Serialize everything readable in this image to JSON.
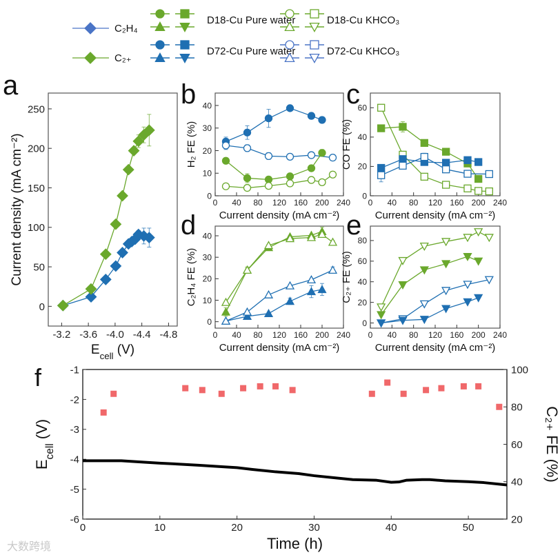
{
  "colors": {
    "green": "#6aa82c",
    "blue": "#1f6fb2",
    "legend_blue": "#4a74c6",
    "red": "#f0686a",
    "black": "#000000"
  },
  "legend": {
    "left": [
      {
        "label": "C₂H₄",
        "color": "#4a74c6",
        "marker": "diamond"
      },
      {
        "label": "C₂₊",
        "color": "#6aa82c",
        "marker": "diamond"
      }
    ],
    "groups": [
      {
        "label": "D18-Cu Pure water",
        "color": "#6aa82c",
        "filled": true
      },
      {
        "label": "D72-Cu Pure water",
        "color": "#1f6fb2",
        "filled": true
      },
      {
        "label": "D18-Cu KHCO₃",
        "color": "#6aa82c",
        "filled": false
      },
      {
        "label": "D72-Cu KHCO₃",
        "color": "#4a74c6",
        "filled": false
      }
    ]
  },
  "watermark": "大数跨境",
  "chart_data": [
    {
      "id": "a",
      "panel_label": "a",
      "type": "line",
      "xlabel": {
        "main": "E",
        "sub": "cell",
        "rest": " (V)"
      },
      "ylabel": "Current density (mA cm⁻²)",
      "xlim": [
        -3.0,
        -4.93
      ],
      "ylim": [
        -25,
        270
      ],
      "xticks": [
        -3.2,
        -3.6,
        -4.0,
        -4.4,
        -4.8
      ],
      "xtick_labels": [
        "-3.2",
        "-3.6",
        "-4.0",
        "-4.4",
        "-4.8"
      ],
      "yticks": [
        0,
        50,
        100,
        150,
        200,
        250
      ],
      "ytick_labels": [
        "0",
        "50",
        "100",
        "150",
        "200",
        "250"
      ],
      "series": [
        {
          "name": "C₂H₄",
          "color": "#1f6fb2",
          "marker": "diamond",
          "filled": true,
          "x": [
            -3.22,
            -3.64,
            -3.86,
            -4.01,
            -4.11,
            -4.2,
            -4.25,
            -4.3,
            -4.35,
            -4.43,
            -4.51
          ],
          "y": [
            1,
            12,
            34,
            51,
            68,
            79,
            82,
            85,
            91,
            89,
            87
          ],
          "err": [
            0,
            0,
            0,
            0,
            0,
            0,
            0,
            0,
            5,
            10,
            12
          ]
        },
        {
          "name": "C₂₊",
          "color": "#6aa82c",
          "marker": "diamond",
          "filled": true,
          "x": [
            -3.22,
            -3.64,
            -3.86,
            -4.01,
            -4.11,
            -4.2,
            -4.28,
            -4.35,
            -4.43,
            -4.51
          ],
          "y": [
            1,
            22,
            66,
            104,
            140,
            173,
            197,
            209,
            217,
            223
          ],
          "err": [
            0,
            0,
            0,
            0,
            0,
            0,
            0,
            8,
            10,
            20
          ]
        }
      ]
    },
    {
      "id": "b",
      "panel_label": "b",
      "type": "line",
      "xlabel": "Current density (mA cm⁻²)",
      "ylabel": "H₂ FE (%)",
      "xlim": [
        0,
        240
      ],
      "ylim": [
        0,
        45.5
      ],
      "xticks": [
        0,
        40,
        80,
        120,
        160,
        200,
        240
      ],
      "xtick_labels": [
        "0",
        "40",
        "80",
        "120",
        "160",
        "200",
        "240"
      ],
      "yticks": [
        0,
        10,
        20,
        30,
        40
      ],
      "ytick_labels": [
        "0",
        "10",
        "20",
        "30",
        "40"
      ],
      "series": [
        {
          "name": "D72-Cu Pure water",
          "color": "#1f6fb2",
          "marker": "circle",
          "filled": true,
          "x": [
            20,
            60,
            100,
            140,
            180,
            200
          ],
          "y": [
            24,
            28,
            34.3,
            38.8,
            35.4,
            33.6
          ],
          "err": [
            2,
            3,
            4,
            1.2,
            0.6,
            0.6
          ]
        },
        {
          "name": "D72-Cu KHCO₃",
          "color": "#1f6fb2",
          "marker": "circle",
          "filled": false,
          "x": [
            20,
            60,
            100,
            140,
            180,
            220
          ],
          "y": [
            22.3,
            21.1,
            17.6,
            17.3,
            18,
            16.9
          ],
          "err": [
            1.8,
            1.5,
            1.5,
            0.5,
            0.5,
            0.4
          ]
        },
        {
          "name": "D18-Cu Pure water",
          "color": "#6aa82c",
          "marker": "circle",
          "filled": true,
          "x": [
            20,
            60,
            100,
            140,
            180,
            200
          ],
          "y": [
            15.5,
            7.8,
            7.2,
            8.6,
            12.2,
            19
          ],
          "err": [
            0.5,
            2,
            0.5,
            0.5,
            1,
            1.5
          ]
        },
        {
          "name": "D18-Cu KHCO₃",
          "color": "#6aa82c",
          "marker": "circle",
          "filled": false,
          "x": [
            20,
            60,
            100,
            140,
            180,
            200,
            220
          ],
          "y": [
            4.2,
            3.5,
            4.4,
            5.5,
            7,
            6,
            9.4
          ],
          "err": [
            0.3,
            0.3,
            0.3,
            0.3,
            0.3,
            0.3,
            0.3
          ]
        }
      ]
    },
    {
      "id": "c",
      "panel_label": "c",
      "type": "line",
      "xlabel": "Current density (mA cm⁻²)",
      "ylabel": "CO FE (%)",
      "xlim": [
        0,
        240
      ],
      "ylim": [
        0,
        70
      ],
      "xticks": [
        0,
        40,
        80,
        120,
        160,
        200,
        240
      ],
      "xtick_labels": [
        "0",
        "40",
        "80",
        "120",
        "160",
        "200",
        "240"
      ],
      "yticks": [
        0,
        20,
        40,
        60
      ],
      "ytick_labels": [
        "0",
        "20",
        "40",
        "60"
      ],
      "series": [
        {
          "name": "D18-Cu Pure water",
          "color": "#6aa82c",
          "marker": "square",
          "filled": true,
          "x": [
            20,
            60,
            100,
            140,
            180,
            200
          ],
          "y": [
            46,
            47,
            36,
            30,
            22,
            11.5
          ],
          "err": [
            0.5,
            3.5,
            0.5,
            0.5,
            0.5,
            0.5
          ]
        },
        {
          "name": "D18-Cu KHCO₃",
          "color": "#6aa82c",
          "marker": "square",
          "filled": false,
          "x": [
            20,
            60,
            100,
            140,
            180,
            200,
            220
          ],
          "y": [
            60,
            28,
            13,
            7.5,
            5,
            3.3,
            3
          ],
          "err": [
            0.3,
            0.5,
            0.5,
            0.3,
            0.3,
            0.3,
            0.3
          ]
        },
        {
          "name": "D72-Cu Pure water",
          "color": "#1f6fb2",
          "marker": "square",
          "filled": true,
          "x": [
            20,
            60,
            100,
            140,
            180,
            200
          ],
          "y": [
            19,
            25,
            23,
            22.5,
            24.3,
            23
          ],
          "err": [
            0.5,
            1,
            1,
            2,
            1,
            1.5
          ]
        },
        {
          "name": "D72-Cu KHCO₃",
          "color": "#1f6fb2",
          "marker": "square",
          "filled": false,
          "x": [
            20,
            60,
            100,
            140,
            180,
            220
          ],
          "y": [
            14,
            20.5,
            26.5,
            18,
            15,
            14.8
          ],
          "err": [
            4.5,
            0.5,
            2.5,
            1,
            0.5,
            0.5
          ]
        }
      ]
    },
    {
      "id": "d",
      "panel_label": "d",
      "type": "line",
      "xlabel": "Current density (mA cm⁻²)",
      "ylabel": "C₂H₄ FE (%)",
      "xlim": [
        0,
        240
      ],
      "ylim": [
        -3,
        44.5
      ],
      "xticks": [
        0,
        40,
        80,
        120,
        160,
        200,
        240
      ],
      "xtick_labels": [
        "0",
        "40",
        "80",
        "120",
        "160",
        "200",
        "240"
      ],
      "yticks": [
        0,
        10,
        20,
        30,
        40
      ],
      "ytick_labels": [
        "0",
        "10",
        "20",
        "30",
        "40"
      ],
      "series": [
        {
          "name": "D18-Cu Pure water",
          "color": "#6aa82c",
          "marker": "triangle-up",
          "filled": true,
          "x": [
            20,
            60,
            100,
            140,
            180,
            200
          ],
          "y": [
            4.5,
            24,
            34.5,
            39.5,
            40.2,
            42
          ],
          "err": [
            2,
            1,
            1,
            0.5,
            0.5,
            2
          ]
        },
        {
          "name": "D18-Cu KHCO₃",
          "color": "#6aa82c",
          "marker": "triangle-up",
          "filled": false,
          "x": [
            20,
            60,
            100,
            140,
            180,
            200,
            220
          ],
          "y": [
            9,
            24,
            35.5,
            38.7,
            39.2,
            40.7,
            37
          ],
          "err": [
            0.5,
            1.5,
            0.5,
            0.5,
            0.5,
            0.5,
            0.8
          ]
        },
        {
          "name": "D72-Cu Pure water",
          "color": "#1f6fb2",
          "marker": "triangle-up",
          "filled": true,
          "x": [
            20,
            60,
            100,
            140,
            180,
            200
          ],
          "y": [
            0.3,
            2.5,
            3.8,
            9.5,
            14,
            15
          ],
          "err": [
            0.2,
            0.3,
            0.3,
            1.5,
            2.8,
            2.8
          ]
        },
        {
          "name": "D72-Cu KHCO₃",
          "color": "#1f6fb2",
          "marker": "triangle-up",
          "filled": false,
          "x": [
            20,
            60,
            100,
            140,
            180,
            220
          ],
          "y": [
            0.3,
            4.5,
            12.5,
            16.7,
            19.5,
            24
          ],
          "err": [
            0.2,
            0.3,
            0.5,
            0.5,
            0.5,
            1.5
          ]
        }
      ]
    },
    {
      "id": "e",
      "panel_label": "e",
      "type": "line",
      "xlabel": "Current density (mA cm⁻²)",
      "ylabel": "C₂₊ FE (%)",
      "xlim": [
        0,
        240
      ],
      "ylim": [
        -5,
        94
      ],
      "xticks": [
        0,
        40,
        80,
        120,
        160,
        200,
        240
      ],
      "xtick_labels": [
        "0",
        "40",
        "80",
        "120",
        "160",
        "200",
        "240"
      ],
      "yticks": [
        0,
        20,
        40,
        60,
        80
      ],
      "ytick_labels": [
        "0",
        "20",
        "40",
        "60",
        "80"
      ],
      "series": [
        {
          "name": "D18-Cu KHCO₃",
          "color": "#6aa82c",
          "marker": "triangle-down",
          "filled": false,
          "x": [
            20,
            60,
            100,
            140,
            180,
            200,
            220
          ],
          "y": [
            15.5,
            60.5,
            74.5,
            79,
            83,
            88.5,
            83
          ],
          "err": [
            1,
            1,
            1,
            1,
            1,
            1,
            1
          ]
        },
        {
          "name": "D18-Cu Pure water",
          "color": "#6aa82c",
          "marker": "triangle-down",
          "filled": true,
          "x": [
            20,
            60,
            100,
            140,
            180,
            200
          ],
          "y": [
            8,
            37,
            51.5,
            57.5,
            64.5,
            60
          ],
          "err": [
            1,
            1,
            1,
            1,
            2,
            1
          ]
        },
        {
          "name": "D72-Cu KHCO₃",
          "color": "#1f6fb2",
          "marker": "triangle-down",
          "filled": false,
          "x": [
            20,
            60,
            100,
            140,
            180,
            220
          ],
          "y": [
            0,
            4,
            18.5,
            31.5,
            37.5,
            42
          ],
          "err": [
            0,
            0,
            0,
            0,
            0,
            0
          ]
        },
        {
          "name": "D72-Cu Pure water",
          "color": "#1f6fb2",
          "marker": "triangle-down",
          "filled": true,
          "x": [
            20,
            60,
            100,
            140,
            180,
            200
          ],
          "y": [
            0,
            2.5,
            3.5,
            14,
            20.5,
            24.5
          ],
          "err": [
            0,
            0,
            0,
            0,
            0,
            0
          ]
        }
      ]
    },
    {
      "id": "f",
      "panel_label": "f",
      "type": "line",
      "xlabel": "Time (h)",
      "ylabel": {
        "main": "E",
        "sub": "cell",
        "rest": " (V)"
      },
      "ylabel_right": "C₂₊ FE (%)",
      "xlim": [
        0,
        55
      ],
      "ylim": [
        -6,
        -1
      ],
      "ylim_right": [
        20,
        100
      ],
      "xticks": [
        0,
        10,
        20,
        30,
        40,
        50
      ],
      "xtick_labels": [
        "0",
        "10",
        "20",
        "30",
        "40",
        "50"
      ],
      "yticks": [
        -6,
        -5,
        -4,
        -3,
        -2,
        -1
      ],
      "ytick_labels": [
        "-6",
        "-5",
        "-4",
        "-3",
        "-2",
        "-1"
      ],
      "yticks_right": [
        20,
        40,
        60,
        80,
        100
      ],
      "ytick_labels_right": [
        "20",
        "40",
        "60",
        "80",
        "100"
      ],
      "series": [
        {
          "name": "Ecell",
          "axis": "left",
          "color": "#000000",
          "marker": "none",
          "x": [
            0,
            2,
            5,
            8,
            10,
            13,
            15,
            18,
            20,
            22,
            25,
            28,
            30,
            33,
            35,
            38,
            40,
            41,
            42,
            44,
            45,
            47,
            50,
            52,
            55
          ],
          "y": [
            -4.05,
            -4.05,
            -4.05,
            -4.1,
            -4.13,
            -4.17,
            -4.2,
            -4.25,
            -4.28,
            -4.34,
            -4.42,
            -4.48,
            -4.55,
            -4.63,
            -4.68,
            -4.7,
            -4.77,
            -4.76,
            -4.7,
            -4.68,
            -4.68,
            -4.72,
            -4.75,
            -4.78,
            -4.86
          ]
        },
        {
          "name": "C₂₊ FE",
          "axis": "right",
          "color": "#f0686a",
          "marker": "square",
          "filled": true,
          "line": false,
          "x": [
            2.7,
            4,
            13.3,
            15.5,
            18,
            20.8,
            23,
            25,
            27.2,
            37.5,
            39.5,
            41.6,
            44.5,
            46.5,
            49.4,
            51.3,
            54
          ],
          "y": [
            77,
            87,
            90,
            89,
            87,
            90,
            91,
            91,
            89,
            87,
            93,
            87,
            89,
            90,
            91,
            91,
            80
          ]
        }
      ]
    }
  ]
}
